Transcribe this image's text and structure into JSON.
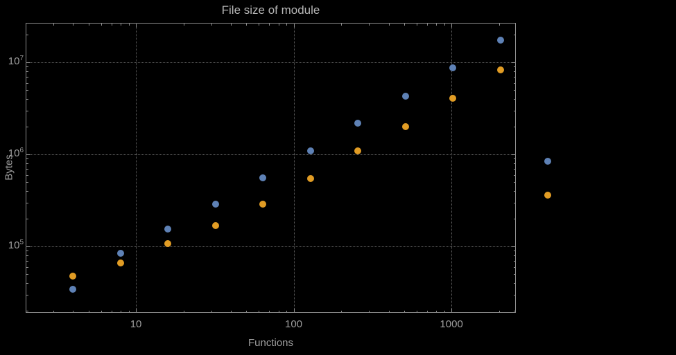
{
  "chart_data": {
    "type": "scatter",
    "title": "File size of module",
    "xlabel": "Functions",
    "ylabel": "Bytes",
    "x_scale": "log",
    "y_scale": "log",
    "xlim": [
      2,
      2560
    ],
    "ylim": [
      19000,
      27000000
    ],
    "grid": {
      "style": "dotted",
      "x_lines": [
        10,
        100,
        1000
      ],
      "y_lines": [
        100000,
        1000000,
        10000000
      ]
    },
    "x_ticks": {
      "major": [
        10,
        100,
        1000
      ],
      "major_labels": [
        "10",
        "100",
        "1000"
      ]
    },
    "y_ticks": {
      "major": [
        100000,
        1000000,
        10000000
      ],
      "major_label_base": "10",
      "major_label_exponents": [
        "5",
        "6",
        "7"
      ]
    },
    "legend": "none",
    "x": [
      4,
      8,
      16,
      32,
      64,
      128,
      256,
      512,
      1024,
      2048,
      4096
    ],
    "series": [
      {
        "name": "blue",
        "color": "#5e81b5",
        "y": [
          34000,
          85000,
          155000,
          290000,
          560000,
          1100000,
          2200000,
          4300000,
          8700000,
          17500000,
          850000
        ]
      },
      {
        "name": "orange",
        "color": "#e19c24",
        "y": [
          48000,
          66000,
          107000,
          170000,
          290000,
          550000,
          1100000,
          2000000,
          4100000,
          8300000,
          360000
        ]
      }
    ],
    "colors": {
      "background": "#000000",
      "frame": "#8f8f8f",
      "gridline": "#5f5f5f",
      "text": "#9e9e9e",
      "title": "#b5b5b5",
      "series_blue": "#5e81b5",
      "series_orange": "#e19c24"
    }
  }
}
